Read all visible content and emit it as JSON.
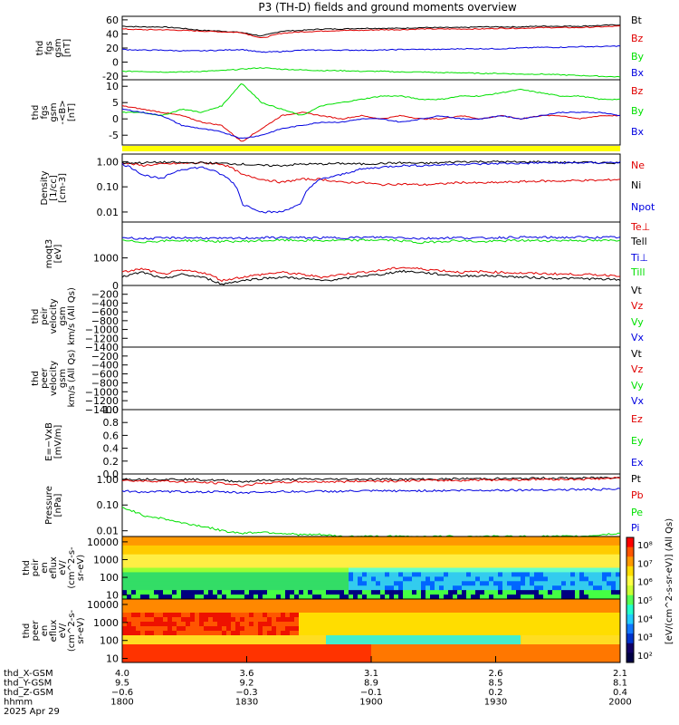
{
  "title": "P3 (TH-D) fields and ground moments overview",
  "colors": {
    "black": "#000000",
    "red": "#e00000",
    "green": "#00e000",
    "blue": "#0000e0",
    "yellow": "#ffff00"
  },
  "chart_data": [
    {
      "type": "line",
      "panel": "fgs",
      "ylabel": [
        "thd",
        "fgs",
        "gsm",
        "[nT]"
      ],
      "ylim": [
        -25,
        65
      ],
      "yticks": [
        60,
        40,
        20,
        0,
        -20
      ],
      "series": [
        {
          "name": "Bt",
          "color": "#000000",
          "values": [
            51,
            50,
            50,
            48,
            45,
            44,
            42,
            37,
            44,
            45,
            47,
            47,
            48,
            48,
            48,
            49,
            49,
            49,
            50,
            50,
            50,
            51,
            51,
            51,
            52,
            53
          ]
        },
        {
          "name": "Bz",
          "color": "#e00000",
          "values": [
            47,
            46,
            46,
            45,
            44,
            43,
            42,
            34,
            41,
            43,
            44,
            45,
            45,
            46,
            46,
            47,
            47,
            47,
            47,
            48,
            48,
            49,
            49,
            49,
            50,
            51
          ]
        },
        {
          "name": "By",
          "color": "#00e000",
          "values": [
            -13,
            -13,
            -14,
            -14,
            -13,
            -12,
            -10,
            -8,
            -10,
            -11,
            -12,
            -12,
            -13,
            -13,
            -14,
            -14,
            -15,
            -15,
            -16,
            -16,
            -17,
            -17,
            -18,
            -19,
            -20,
            -21
          ]
        },
        {
          "name": "Bx",
          "color": "#0000e0",
          "values": [
            18,
            17,
            17,
            16,
            16,
            17,
            18,
            14,
            15,
            17,
            17,
            17,
            17,
            17,
            18,
            18,
            18,
            19,
            19,
            19,
            20,
            21,
            21,
            22,
            22,
            23
          ]
        }
      ],
      "legend": [
        "Bt",
        "Bz",
        "By",
        "Bx"
      ]
    },
    {
      "type": "line",
      "panel": "fgs-dsl",
      "ylabel": [
        "thd",
        "fgs",
        "gsm",
        "-<B>",
        "[nT]"
      ],
      "ylim": [
        -8,
        12
      ],
      "yticks": [
        10,
        5,
        0,
        -5
      ],
      "series": [
        {
          "name": "Bz",
          "color": "#e00000",
          "values": [
            4,
            3,
            2,
            1,
            -1,
            -2,
            -7,
            -3,
            1,
            2,
            1,
            0,
            1,
            0,
            1,
            0,
            0,
            1,
            0,
            1,
            0,
            1,
            1,
            0,
            1,
            1
          ]
        },
        {
          "name": "By",
          "color": "#00e000",
          "values": [
            2,
            2,
            1,
            3,
            2,
            4,
            11,
            5,
            3,
            1,
            4,
            5,
            6,
            7,
            7,
            6,
            6,
            7,
            7,
            8,
            9,
            8,
            7,
            7,
            6,
            6
          ]
        },
        {
          "name": "Bx",
          "color": "#0000e0",
          "values": [
            3,
            2,
            1,
            -2,
            -3,
            -4,
            -6,
            -5,
            -3,
            -2,
            -1,
            -1,
            0,
            0,
            -1,
            0,
            1,
            0,
            0,
            1,
            0,
            1,
            2,
            2,
            2,
            1
          ]
        }
      ],
      "legend": [
        "Bz",
        "By",
        "Bx"
      ]
    },
    {
      "type": "line",
      "panel": "density",
      "ylabel": [
        "Density",
        "[1/cc]",
        "[cm-3]"
      ],
      "yscale": "log",
      "ylim": [
        0.004,
        2
      ],
      "ytick_labels": [
        "1.00",
        "0.10",
        "0.01"
      ],
      "series": [
        {
          "name": "Ne",
          "color": "#e00000",
          "values": [
            0.9,
            0.7,
            0.8,
            0.85,
            0.9,
            0.8,
            0.3,
            0.2,
            0.15,
            0.2,
            0.2,
            0.15,
            0.15,
            0.12,
            0.13,
            0.12,
            0.13,
            0.15,
            0.14,
            0.15,
            0.16,
            0.17,
            0.17,
            0.18,
            0.18,
            0.2
          ]
        },
        {
          "name": "Ni",
          "color": "#000000",
          "values": [
            0.9,
            0.9,
            0.95,
            0.9,
            0.9,
            0.85,
            0.8,
            0.7,
            0.7,
            0.8,
            0.8,
            0.85,
            0.8,
            0.85,
            0.9,
            0.85,
            0.9,
            1.0,
            1.0,
            1.0,
            0.95,
            1.0,
            0.9,
            0.95,
            0.9,
            0.9
          ]
        },
        {
          "name": "Npot",
          "color": "#0000e0",
          "values": [
            0.8,
            0.3,
            0.2,
            0.5,
            0.6,
            0.3,
            0.02,
            0.01,
            0.01,
            0.02,
            0.2,
            0.3,
            0.5,
            0.6,
            0.7,
            0.7,
            0.75,
            0.8,
            0.8,
            0.85,
            0.85,
            0.9,
            0.9,
            0.9,
            0.9,
            0.95
          ]
        }
      ],
      "legend": [
        "Ne",
        "Ni",
        "Npot"
      ]
    },
    {
      "type": "line",
      "panel": "temperature",
      "ylabel": [
        "moqt3",
        "[eV]"
      ],
      "yscale": "log",
      "ylim": [
        100,
        20000
      ],
      "ytick_labels": [
        "1000"
      ],
      "series": [
        {
          "name": "Te⊥",
          "color": "#e00000",
          "values": [
            300,
            400,
            250,
            350,
            300,
            150,
            200,
            250,
            300,
            250,
            200,
            250,
            300,
            350,
            450,
            400,
            350,
            300,
            320,
            300,
            280,
            270,
            260,
            250,
            240,
            230
          ]
        },
        {
          "name": "Tell",
          "color": "#000000",
          "values": [
            200,
            300,
            170,
            250,
            200,
            110,
            150,
            180,
            200,
            180,
            150,
            170,
            220,
            250,
            330,
            300,
            250,
            220,
            230,
            220,
            200,
            190,
            180,
            180,
            170,
            160
          ]
        },
        {
          "name": "Ti⊥",
          "color": "#0000e0",
          "values": [
            5500,
            5000,
            5200,
            5400,
            5300,
            5000,
            5200,
            5400,
            5500,
            5400,
            5300,
            5400,
            5500,
            5600,
            5500,
            5000,
            5300,
            5400,
            5200,
            5500,
            5600,
            5500,
            5500,
            5600,
            5500,
            5600
          ]
        },
        {
          "name": "Till",
          "color": "#00e000",
          "values": [
            4200,
            3800,
            4100,
            4300,
            4200,
            3900,
            4000,
            4200,
            4400,
            4300,
            4200,
            4300,
            4400,
            4500,
            4200,
            3500,
            4000,
            4300,
            3800,
            4100,
            4300,
            4200,
            4300,
            4300,
            4200,
            4400
          ]
        }
      ],
      "legend": [
        "Te⊥",
        "Tell",
        "Ti⊥",
        "Till"
      ]
    },
    {
      "type": "line",
      "panel": "peir-velocity",
      "ylabel": [
        "thd",
        "peir",
        "velocity",
        "gsm",
        "km/s (All Qs)"
      ],
      "ylim": [
        -1400,
        0
      ],
      "ytick_labels": [
        "0",
        "−200",
        "−400",
        "−600",
        "−800",
        "−1000",
        "−1200",
        "−1400"
      ],
      "series": [],
      "legend": [
        "Vt",
        "Vz",
        "Vy",
        "Vx"
      ]
    },
    {
      "type": "line",
      "panel": "peer-velocity",
      "ylabel": [
        "thd",
        "peer",
        "velocity",
        "gsm",
        "km/s (All Qs)"
      ],
      "ylim": [
        -1400,
        0
      ],
      "ytick_labels": [
        "−200",
        "−400",
        "−600",
        "−800",
        "−1000",
        "−1200",
        "−1400"
      ],
      "series": [],
      "legend": [
        "Vt",
        "Vz",
        "Vy",
        "Vx"
      ]
    },
    {
      "type": "line",
      "panel": "efield",
      "ylabel": [
        "E=−VxB",
        "[mV/m]"
      ],
      "ylim": [
        0,
        1
      ],
      "ytick_labels": [
        "1.0",
        "0.8",
        "0.6",
        "0.4",
        "0.2",
        "0.0"
      ],
      "series": [],
      "legend": [
        "Ez",
        "Ey",
        "Ex"
      ]
    },
    {
      "type": "line",
      "panel": "pressure",
      "ylabel": [
        "Pressure",
        "[nPa]"
      ],
      "yscale": "log",
      "ylim": [
        0.006,
        1.6
      ],
      "ytick_labels": [
        "1.00",
        "0.10",
        "0.01"
      ],
      "series": [
        {
          "name": "Pt",
          "color": "#000000",
          "values": [
            1.0,
            1.0,
            1.0,
            1.0,
            0.95,
            0.9,
            0.8,
            0.9,
            0.95,
            1.0,
            1.0,
            1.0,
            1.0,
            1.0,
            1.0,
            1.0,
            1.0,
            1.05,
            1.05,
            1.05,
            1.05,
            1.1,
            1.1,
            1.1,
            1.15,
            1.2
          ]
        },
        {
          "name": "Pb",
          "color": "#e00000",
          "values": [
            0.9,
            0.85,
            0.85,
            0.8,
            0.75,
            0.7,
            0.55,
            0.7,
            0.75,
            0.8,
            0.8,
            0.8,
            0.85,
            0.85,
            0.85,
            0.9,
            0.9,
            0.9,
            0.95,
            0.95,
            0.95,
            1.0,
            1.0,
            1.0,
            1.05,
            1.1
          ]
        },
        {
          "name": "Pe",
          "color": "#00e000",
          "values": [
            0.08,
            0.04,
            0.03,
            0.02,
            0.015,
            0.01,
            0.008,
            0.009,
            0.008,
            0.007,
            0.007,
            0.006,
            0.006,
            0.006,
            0.006,
            0.006,
            0.006,
            0.006,
            0.006,
            0.006,
            0.006,
            0.006,
            0.006,
            0.006,
            0.007,
            0.008
          ]
        },
        {
          "name": "Pi",
          "color": "#0000e0",
          "values": [
            0.35,
            0.32,
            0.33,
            0.33,
            0.32,
            0.32,
            0.3,
            0.32,
            0.33,
            0.33,
            0.34,
            0.34,
            0.35,
            0.35,
            0.35,
            0.36,
            0.36,
            0.37,
            0.37,
            0.38,
            0.38,
            0.39,
            0.39,
            0.4,
            0.4,
            0.41
          ]
        }
      ],
      "legend": [
        "Pt",
        "Pb",
        "Pe",
        "Pi"
      ]
    },
    {
      "type": "heatmap",
      "panel": "peir-eflux",
      "ylabel": [
        "thd",
        "peir",
        "en",
        "eflux",
        "eV/",
        "(cm^2-s-",
        "sr-eV)"
      ],
      "yscale": "log",
      "ylim": [
        6,
        20000
      ],
      "ytick_labels": [
        "10000",
        "1000",
        "100",
        "10"
      ]
    },
    {
      "type": "heatmap",
      "panel": "peer-eflux",
      "ylabel": [
        "thd",
        "peer",
        "en",
        "eflux",
        "eV/",
        "(cm^2-s-",
        "sr-eV)"
      ],
      "yscale": "log",
      "ylim": [
        6,
        20000
      ],
      "ytick_labels": [
        "10000",
        "1000",
        "100",
        "10"
      ]
    }
  ],
  "colorbar": {
    "label": "[eV/(cm^2-s-sr-eV)] (All Qs)",
    "tick_labels": [
      "10⁸",
      "10⁷",
      "10⁶",
      "10⁵",
      "10⁴",
      "10³",
      "10²"
    ]
  },
  "xaxis": {
    "row_labels": [
      "thd_X-GSM",
      "thd_Y-GSM",
      "thd_Z-GSM",
      "hhmm",
      "2025 Apr 29"
    ],
    "columns": [
      {
        "values": [
          "4.0",
          "9.5",
          "−0.6",
          "1800"
        ]
      },
      {
        "values": [
          "3.6",
          "9.2",
          "−0.3",
          "1830"
        ]
      },
      {
        "values": [
          "3.1",
          "8.9",
          "−0.1",
          "1900"
        ]
      },
      {
        "values": [
          "2.6",
          "8.5",
          "0.2",
          "1930"
        ]
      },
      {
        "values": [
          "2.1",
          "8.1",
          "0.4",
          "2000"
        ]
      }
    ]
  }
}
